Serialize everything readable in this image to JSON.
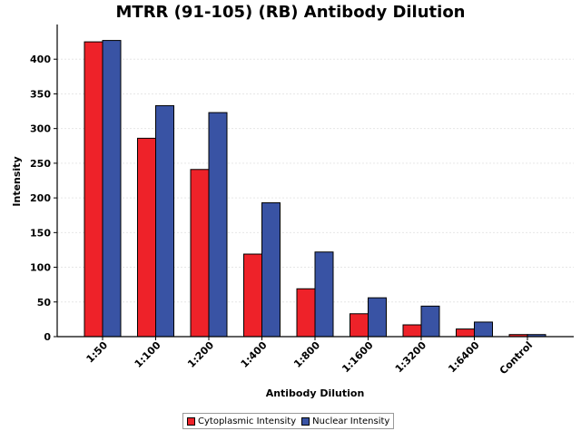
{
  "chart_data": {
    "type": "bar",
    "title": "MTRR (91-105) (RB) Antibody Dilution",
    "xlabel": "Antibody Dilution",
    "ylabel": "Intensity",
    "categories": [
      "1:50",
      "1:100",
      "1:200",
      "1:400",
      "1:800",
      "1:1600",
      "1:3200",
      "1:6400",
      "Control"
    ],
    "series": [
      {
        "name": "Cytoplasmic Intensity",
        "color": "#ee2229",
        "values": [
          425,
          286,
          241,
          119,
          69,
          33,
          17,
          11,
          3
        ]
      },
      {
        "name": "Nuclear Intensity",
        "color": "#3953a4",
        "values": [
          427,
          333,
          323,
          193,
          122,
          56,
          44,
          21,
          3
        ]
      }
    ],
    "ylim": [
      0,
      450
    ],
    "yticks": [
      0,
      50,
      100,
      150,
      200,
      250,
      300,
      350,
      400
    ],
    "grid": true,
    "legend_position": "bottom"
  }
}
